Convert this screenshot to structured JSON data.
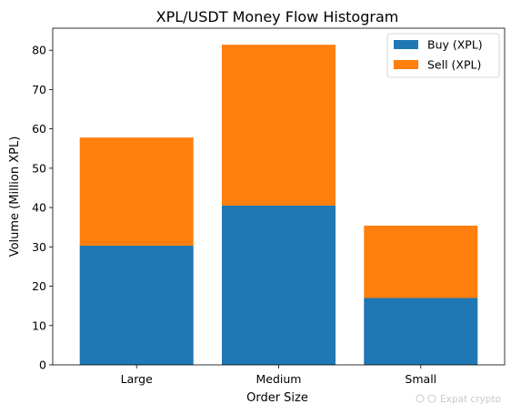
{
  "chart_data": {
    "type": "bar",
    "stacked": true,
    "title": "XPL/USDT Money Flow Histogram",
    "xlabel": "Order Size",
    "ylabel": "Volume (Million XPL)",
    "categories": [
      "Large",
      "Medium",
      "Small"
    ],
    "series": [
      {
        "name": "Buy (XPL)",
        "color": "#1f77b4",
        "values": [
          30.3,
          40.5,
          17.0
        ]
      },
      {
        "name": "Sell (XPL)",
        "color": "#ff7f0e",
        "values": [
          27.5,
          40.9,
          18.4
        ]
      }
    ],
    "ylim": [
      0,
      85.6
    ],
    "yticks": [
      0,
      10,
      20,
      30,
      40,
      50,
      60,
      70,
      80
    ],
    "grid": false,
    "legend_position": "top-right"
  },
  "watermark": "Expat crypto"
}
